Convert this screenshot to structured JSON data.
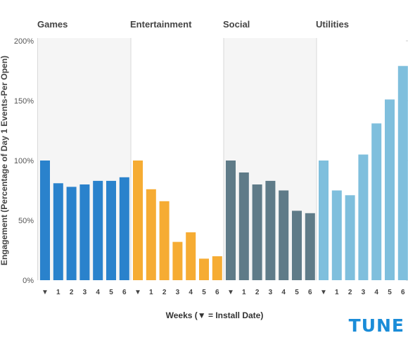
{
  "chart_data": {
    "type": "bar",
    "ylabel": "Engagement (Percentage of Day 1 Events-Per Open)",
    "xlabel": "Weeks (▼ = Install Date)",
    "ylim": [
      0,
      200
    ],
    "yticks": [
      {
        "value": 0,
        "label": "0%"
      },
      {
        "value": 50,
        "label": "50%"
      },
      {
        "value": 100,
        "label": "100%"
      },
      {
        "value": 150,
        "label": "150%"
      },
      {
        "value": 200,
        "label": "200%"
      }
    ],
    "x_tick_labels": [
      "▼",
      "1",
      "2",
      "3",
      "4",
      "5",
      "6"
    ],
    "grid": false,
    "groups": [
      {
        "name": "Games",
        "color": "#2a82cc",
        "shaded": true,
        "values": [
          100,
          81,
          78,
          80,
          83,
          83,
          86
        ]
      },
      {
        "name": "Entertainment",
        "color": "#f6ac33",
        "shaded": false,
        "values": [
          100,
          76,
          66,
          32,
          40,
          18,
          20
        ]
      },
      {
        "name": "Social",
        "color": "#5f7b88",
        "shaded": true,
        "values": [
          100,
          90,
          80,
          83,
          75,
          58,
          56
        ]
      },
      {
        "name": "Utilities",
        "color": "#7fbfdd",
        "shaded": false,
        "values": [
          100,
          75,
          71,
          105,
          131,
          151,
          179
        ]
      }
    ]
  },
  "brand": {
    "logo_text": "TUNE",
    "color": "#1a8cd8"
  }
}
